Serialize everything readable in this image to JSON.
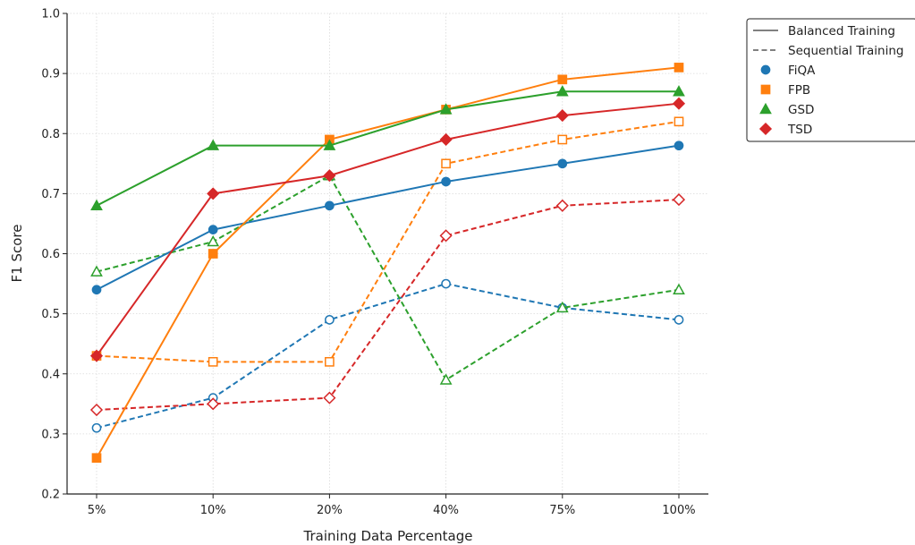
{
  "chart_data": {
    "type": "line",
    "title": "",
    "xlabel": "Training Data Percentage",
    "ylabel": "F1 Score",
    "categories": [
      "5%",
      "10%",
      "20%",
      "40%",
      "75%",
      "100%"
    ],
    "ylim": [
      0.2,
      1.0
    ],
    "yticks": [
      "0.2",
      "0.3",
      "0.4",
      "0.5",
      "0.6",
      "0.7",
      "0.8",
      "0.9",
      "1.0"
    ],
    "grid": true,
    "legend_position": "upper-right-outside",
    "legend": [
      {
        "label": "Balanced Training",
        "kind": "solid-line",
        "color": "#808080"
      },
      {
        "label": "Sequential Training",
        "kind": "dashed-line",
        "color": "#808080"
      },
      {
        "label": "FiQA",
        "kind": "marker",
        "marker": "circle",
        "color": "#1f77b4"
      },
      {
        "label": "FPB",
        "kind": "marker",
        "marker": "square",
        "color": "#ff7f0e"
      },
      {
        "label": "GSD",
        "kind": "marker",
        "marker": "triangle",
        "color": "#2ca02c"
      },
      {
        "label": "TSD",
        "kind": "marker",
        "marker": "diamond",
        "color": "#d62728"
      }
    ],
    "series": [
      {
        "dataset": "FiQA",
        "training": "Balanced Training",
        "color": "#1f77b4",
        "marker": "circle",
        "dashed": false,
        "filled": true,
        "values": [
          0.54,
          0.64,
          0.68,
          0.72,
          0.75,
          0.78
        ]
      },
      {
        "dataset": "FPB",
        "training": "Balanced Training",
        "color": "#ff7f0e",
        "marker": "square",
        "dashed": false,
        "filled": true,
        "values": [
          0.26,
          0.6,
          0.79,
          0.84,
          0.89,
          0.91
        ]
      },
      {
        "dataset": "GSD",
        "training": "Balanced Training",
        "color": "#2ca02c",
        "marker": "triangle",
        "dashed": false,
        "filled": true,
        "values": [
          0.68,
          0.78,
          0.78,
          0.84,
          0.87,
          0.87
        ]
      },
      {
        "dataset": "TSD",
        "training": "Balanced Training",
        "color": "#d62728",
        "marker": "diamond",
        "dashed": false,
        "filled": true,
        "values": [
          0.43,
          0.7,
          0.73,
          0.79,
          0.83,
          0.85
        ]
      },
      {
        "dataset": "FiQA",
        "training": "Sequential Training",
        "color": "#1f77b4",
        "marker": "circle",
        "dashed": true,
        "filled": false,
        "values": [
          0.31,
          0.36,
          0.49,
          0.55,
          0.51,
          0.49
        ]
      },
      {
        "dataset": "FPB",
        "training": "Sequential Training",
        "color": "#ff7f0e",
        "marker": "square",
        "dashed": true,
        "filled": false,
        "values": [
          0.43,
          0.42,
          0.42,
          0.75,
          0.79,
          0.82
        ]
      },
      {
        "dataset": "GSD",
        "training": "Sequential Training",
        "color": "#2ca02c",
        "marker": "triangle",
        "dashed": true,
        "filled": false,
        "values": [
          0.57,
          0.62,
          0.73,
          0.39,
          0.51,
          0.54
        ]
      },
      {
        "dataset": "TSD",
        "training": "Sequential Training",
        "color": "#d62728",
        "marker": "diamond",
        "dashed": true,
        "filled": false,
        "values": [
          0.34,
          0.35,
          0.36,
          0.63,
          0.68,
          0.69
        ]
      }
    ]
  }
}
